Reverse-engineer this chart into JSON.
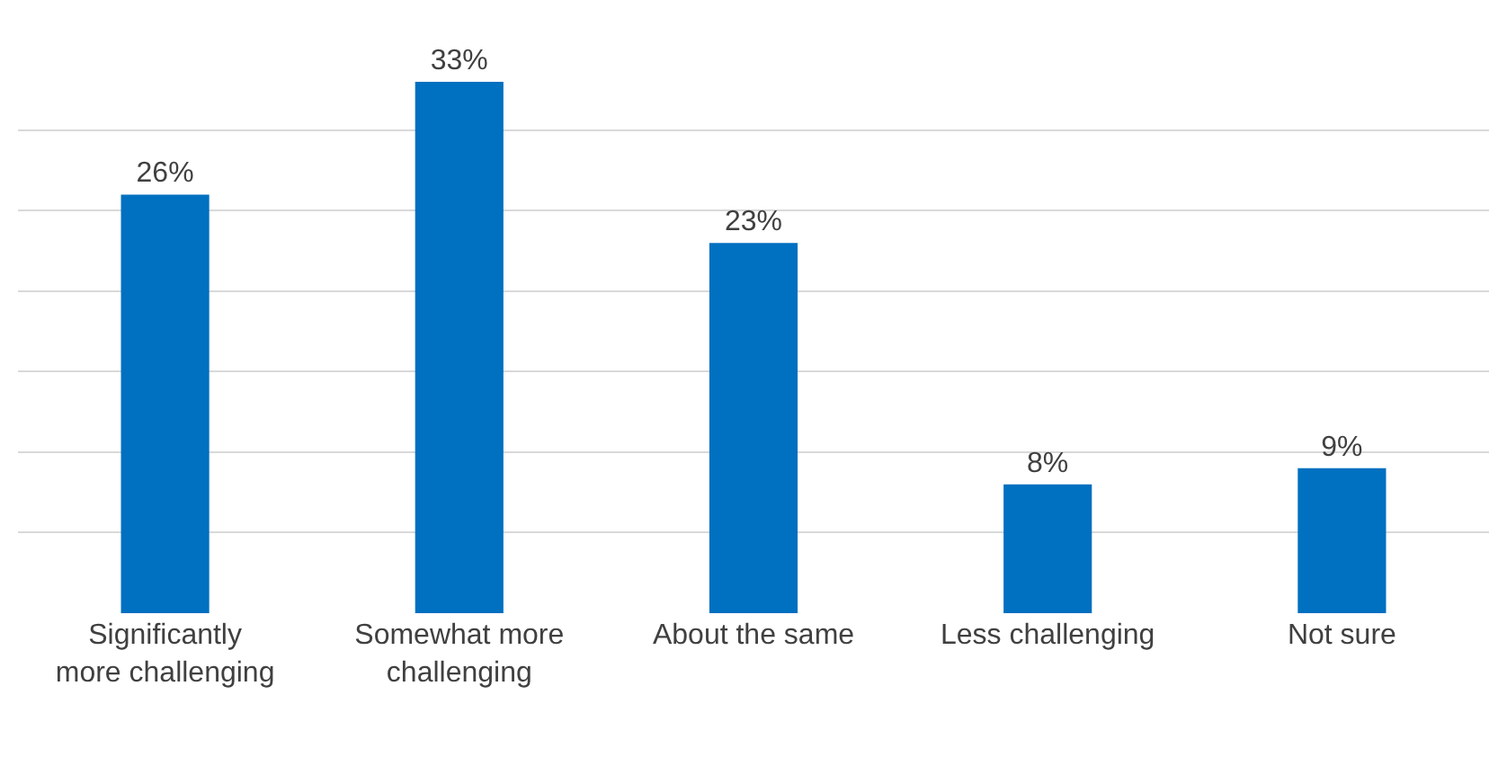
{
  "chart_data": {
    "type": "bar",
    "categories": [
      "Significantly more challenging",
      "Somewhat more challenging",
      "About the same",
      "Less challenging",
      "Not sure"
    ],
    "values": [
      26,
      33,
      23,
      8,
      9
    ],
    "value_labels": [
      "26%",
      "33%",
      "23%",
      "8%",
      "9%"
    ],
    "color": "#0070c0",
    "grid": "y",
    "tick_labels": "x"
  }
}
